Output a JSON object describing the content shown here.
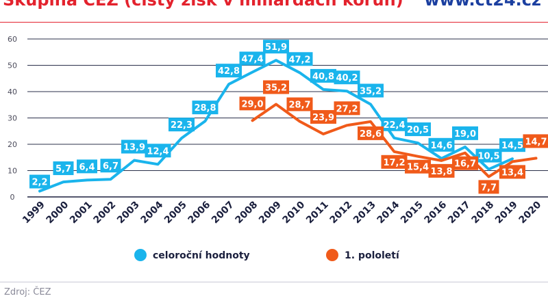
{
  "header": {
    "title": "Skupina ČEZ (čistý zisk v miliardách korun)",
    "brand": "www.ct24.cz"
  },
  "source": "Zdroj: ČEZ",
  "chart_data": {
    "type": "line",
    "title": "Skupina ČEZ (čistý zisk v miliardách korun)",
    "xlabel": "",
    "ylabel": "",
    "ylim": [
      0,
      60
    ],
    "yticks": [
      0,
      10,
      20,
      30,
      40,
      50,
      60
    ],
    "grid": true,
    "legend_position": "bottom",
    "categories": [
      "1999",
      "2000",
      "2001",
      "2002",
      "2003",
      "2004",
      "2005",
      "2006",
      "2007",
      "2008",
      "2009",
      "2010",
      "2011",
      "2012",
      "2013",
      "2014",
      "2015",
      "2016",
      "2017",
      "2018",
      "2019",
      "2020"
    ],
    "series": [
      {
        "name": "celoroční hodnoty",
        "color": "#1ab4ec",
        "values": [
          2.2,
          5.7,
          6.4,
          6.7,
          13.9,
          12.4,
          22.3,
          28.8,
          42.8,
          47.4,
          51.9,
          47.2,
          40.8,
          40.2,
          35.2,
          22.4,
          20.5,
          14.6,
          19.0,
          10.5,
          14.5,
          null
        ],
        "labels": [
          "2,2",
          "5,7",
          "6,4",
          "6,7",
          "13,9",
          "12,4",
          "22,3",
          "28,8",
          "42,8",
          "47,4",
          "51,9",
          "47,2",
          "40,8",
          "40,2",
          "35,2",
          "22,4",
          "20,5",
          "14,6",
          "19,0",
          "10,5",
          "14,5",
          null
        ]
      },
      {
        "name": "1. pololetí",
        "color": "#f05a1a",
        "values": [
          null,
          null,
          null,
          null,
          null,
          null,
          null,
          null,
          null,
          29.0,
          35.2,
          28.7,
          23.9,
          27.2,
          28.6,
          17.2,
          15.4,
          13.8,
          16.7,
          7.7,
          13.4,
          14.7
        ],
        "labels": [
          null,
          null,
          null,
          null,
          null,
          null,
          null,
          null,
          null,
          "29,0",
          "35,2",
          "28,7",
          "23,9",
          "27,2",
          "28,6",
          "17,2",
          "15,4",
          "13,8",
          "16,7",
          "7,7",
          "13,4",
          "14,7"
        ]
      }
    ]
  }
}
